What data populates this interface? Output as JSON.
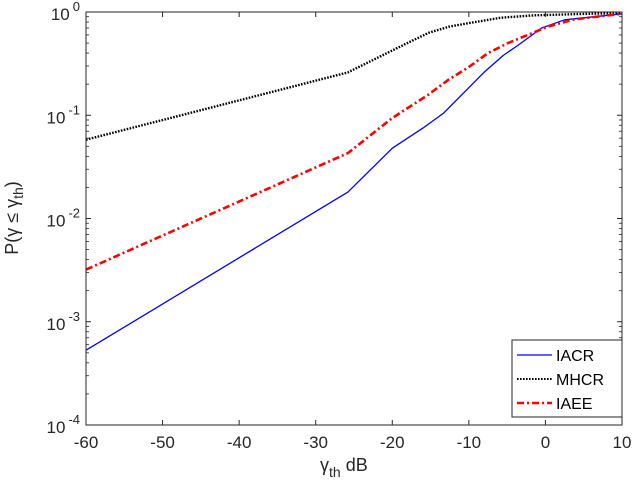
{
  "chart_data": {
    "type": "line",
    "title": "",
    "xlabel": "γth dB",
    "xlabel_parts": {
      "main": "γ",
      "sub": "th",
      "suffix": " dB"
    },
    "ylabel": "P(γ ≤ γth)",
    "ylabel_parts": {
      "prefix": "P(γ ≤ γ",
      "sub": "th",
      "suffix": ")"
    },
    "xlim": [
      -60,
      10
    ],
    "ylim": [
      0.0001,
      1
    ],
    "yscale": "log",
    "grid": false,
    "legend_position": "lower right",
    "x_ticks": [
      -60,
      -50,
      -40,
      -30,
      -20,
      -10,
      0,
      10
    ],
    "x_tick_labels": [
      "-60",
      "-50",
      "-40",
      "-30",
      "-20",
      "-10",
      "0",
      "10"
    ],
    "y_ticks": [
      {
        "value": 1,
        "base": "10",
        "exp": "0"
      },
      {
        "value": 0.1,
        "base": "10",
        "exp": "-1"
      },
      {
        "value": 0.01,
        "base": "10",
        "exp": "-2"
      },
      {
        "value": 0.001,
        "base": "10",
        "exp": "-3"
      },
      {
        "value": 0.0001,
        "base": "10",
        "exp": "-4"
      }
    ],
    "series": [
      {
        "name": "IACR",
        "color": "#0000ff",
        "style": "solid",
        "x": [
          -60,
          -25.8,
          -20,
          -16,
          -13.3,
          -10.7,
          -8.1,
          -5.5,
          -3.5,
          -0.5,
          2.5,
          10
        ],
        "values": [
          0.00053,
          0.018,
          0.048,
          0.075,
          0.105,
          0.164,
          0.257,
          0.38,
          0.48,
          0.7,
          0.84,
          0.96
        ]
      },
      {
        "name": "MHCR",
        "color": "#000000",
        "style": "dotted",
        "x": [
          -60,
          -25.8,
          -20.4,
          -17.8,
          -15.2,
          -12.6,
          -10,
          -5.8,
          -1.4,
          10
        ],
        "values": [
          0.058,
          0.26,
          0.41,
          0.51,
          0.63,
          0.72,
          0.78,
          0.88,
          0.93,
          0.98
        ]
      },
      {
        "name": "IAEE",
        "color": "#ff0000",
        "style": "dashdot",
        "x": [
          -60,
          -25.8,
          -20,
          -15.3,
          -12.7,
          -10.1,
          -7.5,
          -4.9,
          -2.3,
          0.3,
          3.8,
          10
        ],
        "values": [
          0.0032,
          0.043,
          0.094,
          0.158,
          0.22,
          0.29,
          0.4,
          0.5,
          0.6,
          0.72,
          0.85,
          0.96
        ]
      }
    ]
  },
  "legend": {
    "items": [
      {
        "label": "IACR"
      },
      {
        "label": "MHCR"
      },
      {
        "label": "IAEE"
      }
    ]
  }
}
